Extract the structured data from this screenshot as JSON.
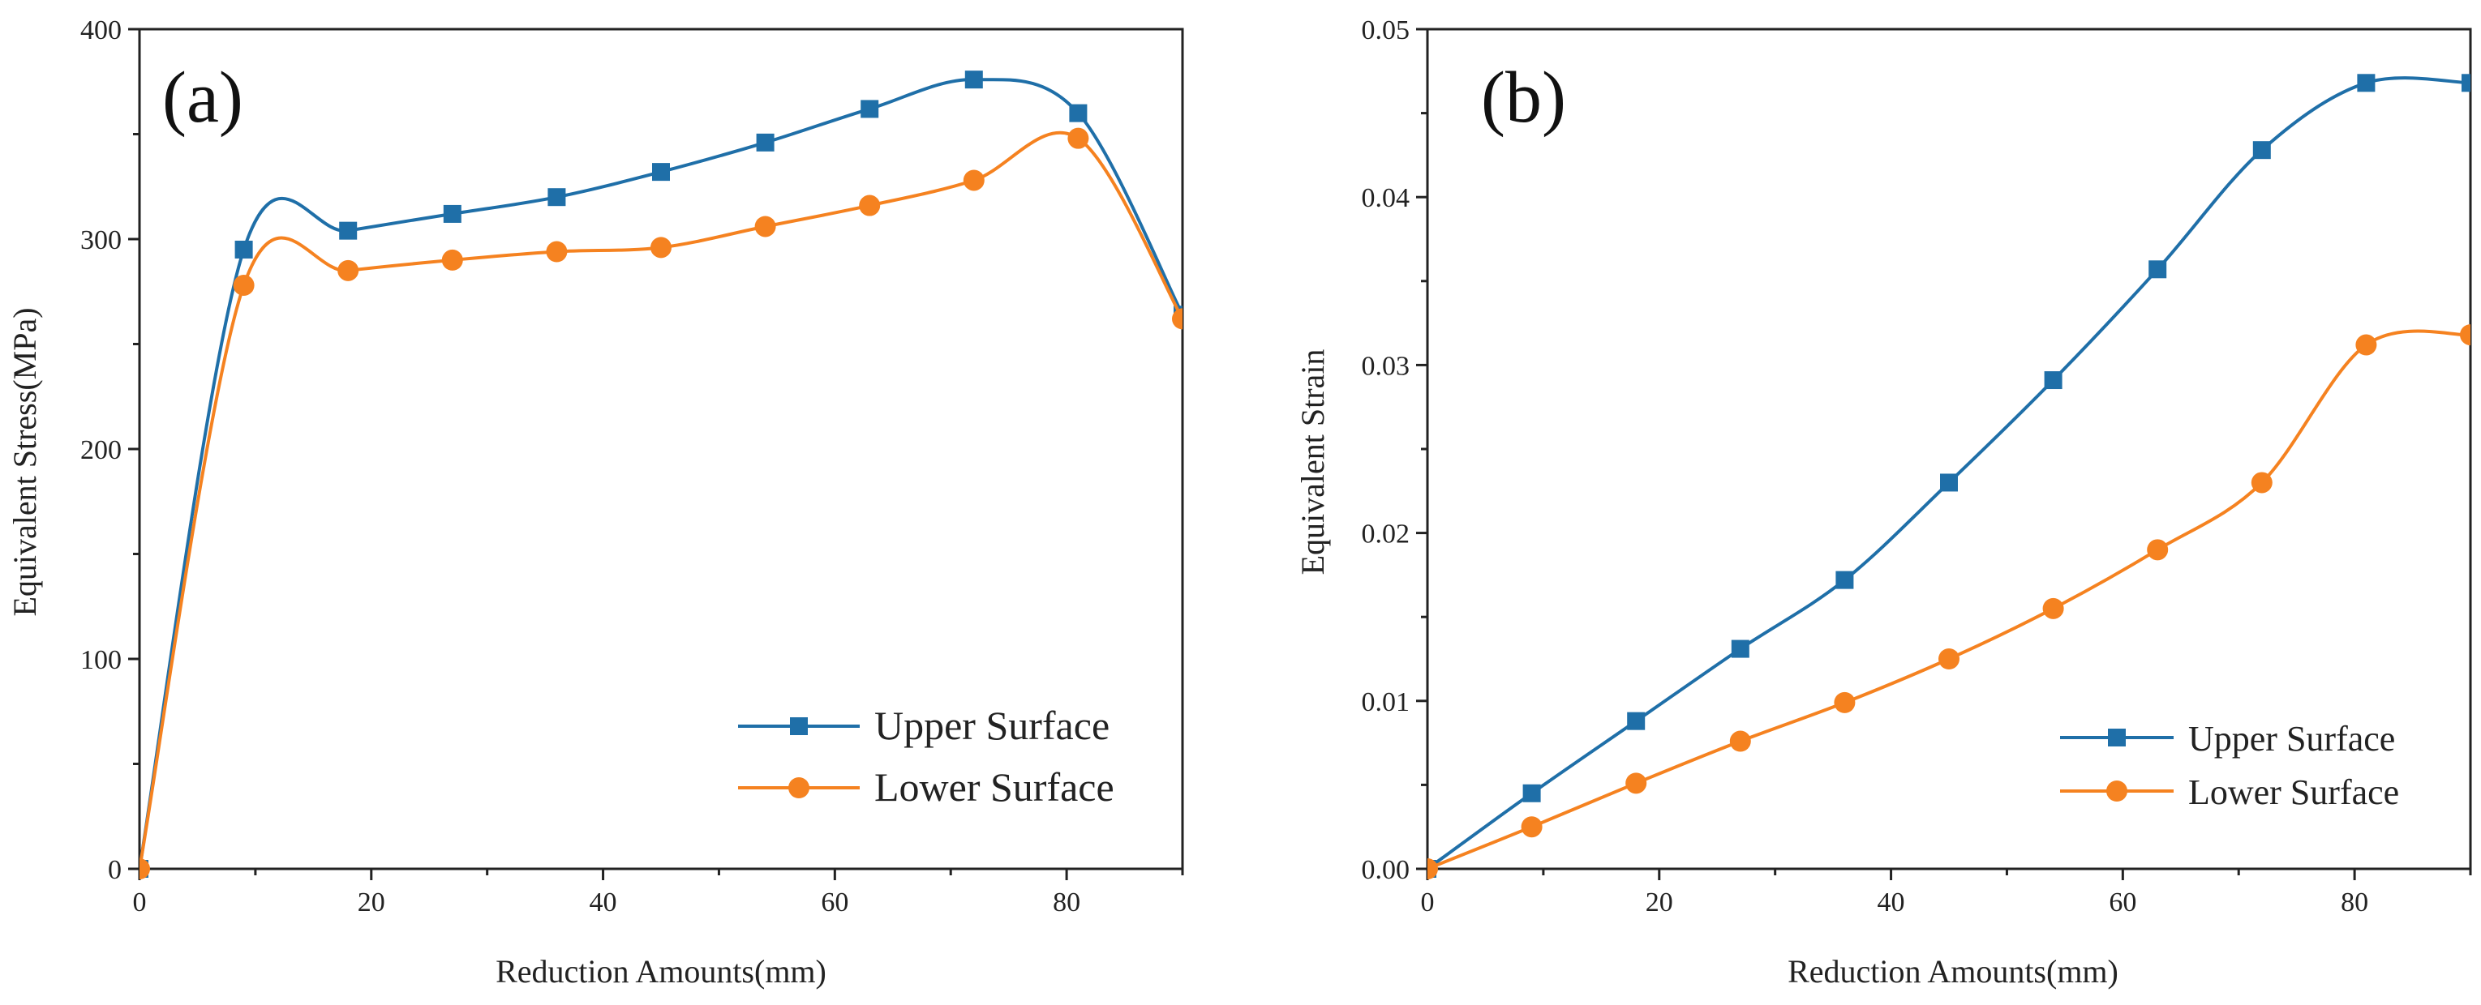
{
  "chart_data": [
    {
      "type": "line",
      "panel_label": "(a)",
      "xlabel": "Reduction Amounts(mm)",
      "ylabel": "Equivalent Stress(MPa)",
      "xlim": [
        0,
        90
      ],
      "ylim": [
        0,
        400
      ],
      "xticks": [
        0,
        20,
        40,
        60,
        80
      ],
      "yticks": [
        0,
        100,
        200,
        300,
        400
      ],
      "legend_position": "lower-right",
      "x": [
        0,
        9,
        18,
        27,
        36,
        45,
        54,
        63,
        72,
        81,
        90
      ],
      "series": [
        {
          "name": "Upper Surface",
          "color": "#1f6fa8",
          "marker": "square",
          "values": [
            0,
            295,
            304,
            312,
            320,
            332,
            346,
            362,
            376,
            360,
            264
          ]
        },
        {
          "name": "Lower Surface",
          "color": "#f58220",
          "marker": "circle",
          "values": [
            0,
            278,
            285,
            290,
            294,
            296,
            306,
            316,
            328,
            348,
            262
          ]
        }
      ]
    },
    {
      "type": "line",
      "panel_label": "(b)",
      "xlabel": "Reduction Amounts(mm)",
      "ylabel": "Equivalent Strain",
      "xlim": [
        0,
        90
      ],
      "ylim": [
        0,
        0.05
      ],
      "xticks": [
        0,
        20,
        40,
        60,
        80
      ],
      "yticks": [
        "0.00",
        "0.01",
        "0.02",
        "0.03",
        "0.04",
        "0.05"
      ],
      "legend_position": "lower-right",
      "x": [
        0,
        9,
        18,
        27,
        36,
        45,
        54,
        63,
        72,
        81,
        90
      ],
      "series": [
        {
          "name": "Upper Surface",
          "color": "#1f6fa8",
          "marker": "square",
          "values": [
            0,
            0.0045,
            0.0088,
            0.0131,
            0.0172,
            0.023,
            0.0291,
            0.0357,
            0.0428,
            0.0468,
            0.0468
          ]
        },
        {
          "name": "Lower Surface",
          "color": "#f58220",
          "marker": "circle",
          "values": [
            0,
            0.0025,
            0.0051,
            0.0076,
            0.0099,
            0.0125,
            0.0155,
            0.019,
            0.023,
            0.0312,
            0.0318
          ]
        }
      ]
    }
  ]
}
